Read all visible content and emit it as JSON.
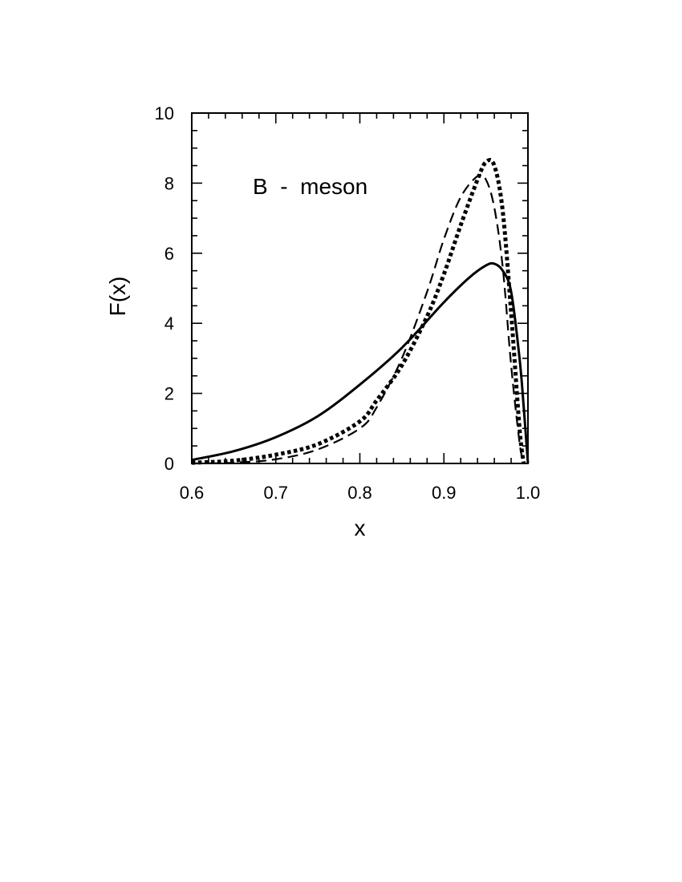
{
  "chart_data": {
    "type": "line",
    "title": "",
    "xlabel": "x",
    "ylabel": "F(x)",
    "xlim": [
      0.6,
      1.0
    ],
    "ylim": [
      0,
      10
    ],
    "xticks": [
      0.6,
      0.7,
      0.8,
      0.9,
      1.0
    ],
    "xtick_labels": [
      "0.6",
      "0.7",
      "0.8",
      "0.9",
      "1.0"
    ],
    "yticks": [
      0,
      2,
      4,
      6,
      8,
      10
    ],
    "ytick_labels": [
      "0",
      "2",
      "4",
      "6",
      "8",
      "10"
    ],
    "grid": false,
    "annotations": [
      {
        "text": "B  -  meson"
      }
    ],
    "series": [
      {
        "line_style": "solid",
        "x": [
          0.6,
          0.65,
          0.7,
          0.75,
          0.8,
          0.85,
          0.9,
          0.93,
          0.95,
          0.96,
          0.97,
          0.98,
          0.99,
          0.995,
          1.0
        ],
        "y": [
          0.1,
          0.35,
          0.75,
          1.35,
          2.25,
          3.3,
          4.6,
          5.3,
          5.65,
          5.7,
          5.5,
          4.9,
          3.0,
          1.6,
          0.0
        ]
      },
      {
        "line_style": "dashed",
        "x": [
          0.6,
          0.65,
          0.7,
          0.75,
          0.8,
          0.82,
          0.85,
          0.88,
          0.9,
          0.92,
          0.94,
          0.95,
          0.96,
          0.97,
          0.98,
          0.99,
          0.995
        ],
        "y": [
          0.0,
          0.02,
          0.12,
          0.4,
          1.0,
          1.6,
          3.0,
          4.9,
          6.4,
          7.6,
          8.2,
          8.1,
          7.3,
          5.6,
          2.8,
          0.6,
          0.0
        ]
      },
      {
        "line_style": "dotted",
        "x": [
          0.6,
          0.65,
          0.7,
          0.75,
          0.8,
          0.82,
          0.85,
          0.88,
          0.9,
          0.92,
          0.94,
          0.95,
          0.96,
          0.97,
          0.98,
          0.99,
          0.995
        ],
        "y": [
          0.02,
          0.08,
          0.25,
          0.55,
          1.2,
          1.8,
          2.8,
          4.2,
          5.4,
          6.8,
          8.1,
          8.6,
          8.5,
          7.2,
          4.3,
          1.0,
          0.0
        ]
      }
    ]
  }
}
